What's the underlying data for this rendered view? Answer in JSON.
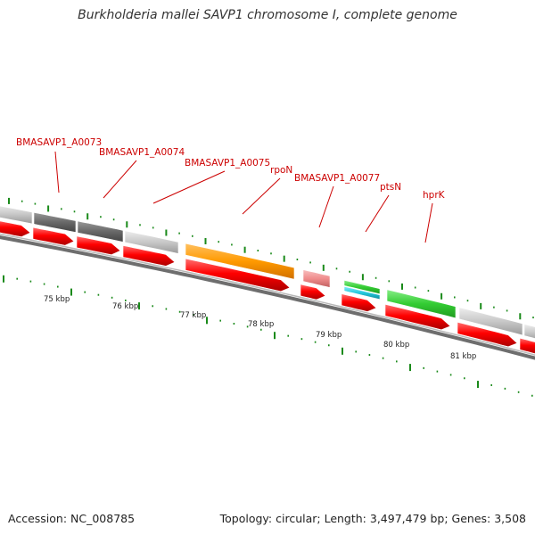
{
  "title": "Burkholderia mallei SAVP1 chromosome I, complete genome",
  "footer": {
    "accession": "Accession: NC_008785",
    "topology": "Topology: circular; Length: 3,497,479 bp; Genes: 3,508"
  },
  "colors": {
    "cds_forward": "#ff0000",
    "backbone": "#777777",
    "tick": "#1a8a1a",
    "label": "#cc0000",
    "gene_grey_light": "#c8c8c8",
    "gene_grey_dark": "#686868",
    "gene_orange": "#ff9a00",
    "gene_pink": "#f08c8c",
    "gene_green": "#33cc33",
    "gene_cyan": "#22c8dd"
  },
  "gene_labels": [
    {
      "id": "lbl-a0073",
      "text": "BMASAVP1_A0073"
    },
    {
      "id": "lbl-a0074",
      "text": "BMASAVP1_A0074"
    },
    {
      "id": "lbl-a0075",
      "text": "BMASAVP1_A0075"
    },
    {
      "id": "lbl-rpon",
      "text": "rpoN"
    },
    {
      "id": "lbl-a0077",
      "text": "BMASAVP1_A0077"
    },
    {
      "id": "lbl-ptsn",
      "text": "ptsN"
    },
    {
      "id": "lbl-hprk",
      "text": "hprK"
    }
  ],
  "scale_labels": [
    "75 kbp",
    "76 kbp",
    "77 kbp",
    "78 kbp",
    "79 kbp",
    "80 kbp",
    "81 kbp"
  ]
}
